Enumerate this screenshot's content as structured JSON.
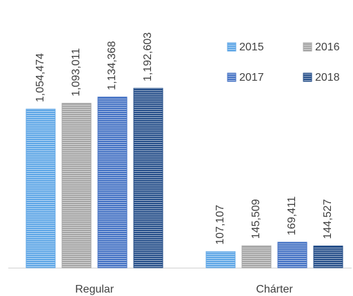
{
  "chart_data": {
    "type": "bar",
    "categories": [
      "Regular",
      "Chárter"
    ],
    "series": [
      {
        "name": "2015",
        "color": "#5ea6e6",
        "values": [
          1054474,
          107107
        ],
        "value_labels": [
          "1,054,474",
          "107,107"
        ]
      },
      {
        "name": "2016",
        "color": "#a5a5a5",
        "values": [
          1093011,
          145509
        ],
        "value_labels": [
          "1,093,011",
          "145,509"
        ]
      },
      {
        "name": "2017",
        "color": "#4472c4",
        "values": [
          1134368,
          169411
        ],
        "value_labels": [
          "1,134,368",
          "169,411"
        ]
      },
      {
        "name": "2018",
        "color": "#264f8a",
        "values": [
          1192603,
          144527
        ],
        "value_labels": [
          "1,192,603",
          "144,527"
        ]
      }
    ],
    "legend": "top-right"
  }
}
